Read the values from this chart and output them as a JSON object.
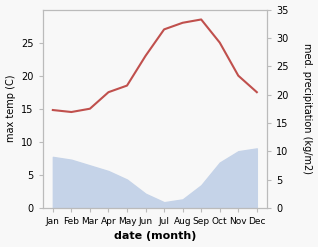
{
  "months": [
    "Jan",
    "Feb",
    "Mar",
    "Apr",
    "May",
    "Jun",
    "Jul",
    "Aug",
    "Sep",
    "Oct",
    "Nov",
    "Dec"
  ],
  "max_temp": [
    14.8,
    14.5,
    15.0,
    17.5,
    18.5,
    23.0,
    27.0,
    28.0,
    28.5,
    25.0,
    20.0,
    17.5
  ],
  "precipitation": [
    9.0,
    8.5,
    7.5,
    6.5,
    5.0,
    2.5,
    1.0,
    1.5,
    4.0,
    8.0,
    10.0,
    10.5
  ],
  "temp_color": "#c0504d",
  "precip_fill_color": "#c5d3e8",
  "left_ylabel": "max temp (C)",
  "right_ylabel": "med. precipitation (kg/m2)",
  "xlabel": "date (month)",
  "left_ylim": [
    0,
    30
  ],
  "right_ylim": [
    0,
    35
  ],
  "left_yticks": [
    0,
    5,
    10,
    15,
    20,
    25
  ],
  "right_yticks": [
    0,
    5,
    10,
    15,
    20,
    25,
    30,
    35
  ],
  "bg_color": "#f8f8f8",
  "spine_color": "#bbbbbb",
  "temp_linewidth": 1.5,
  "xlabel_fontsize": 8,
  "ylabel_fontsize": 7,
  "tick_fontsize": 7,
  "xtick_fontsize": 6.5
}
